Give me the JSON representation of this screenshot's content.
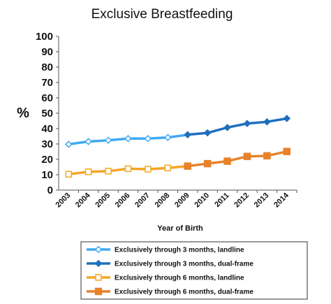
{
  "chart_data": {
    "type": "line",
    "title": "Exclusive Breastfeeding",
    "xlabel": "Year of Birth",
    "ylabel": "%",
    "ylim": [
      0,
      100
    ],
    "yticks": [
      "0",
      "10",
      "20",
      "30",
      "40",
      "50",
      "60",
      "70",
      "80",
      "90",
      "100"
    ],
    "x": [
      "2003",
      "2004",
      "2005",
      "2006",
      "2007",
      "2008",
      "2009",
      "2010",
      "2011",
      "2012",
      "2013",
      "2014"
    ],
    "grid": false,
    "legend_position": "bottom",
    "series": [
      {
        "name": "Exclusively through 3 months, landline",
        "color": "#3fa9f5",
        "marker": "open-diamond",
        "x": [
          "2003",
          "2004",
          "2005",
          "2006",
          "2007",
          "2008",
          "2009"
        ],
        "values": [
          29.8,
          31.6,
          32.4,
          33.5,
          33.5,
          34.2,
          36.0
        ]
      },
      {
        "name": "Exclusively through 3 months, dual-frame",
        "color": "#1f6fbf",
        "marker": "filled-diamond",
        "x": [
          "2009",
          "2010",
          "2011",
          "2012",
          "2013",
          "2014"
        ],
        "values": [
          36.0,
          37.2,
          40.7,
          43.3,
          44.4,
          46.6
        ]
      },
      {
        "name": "Exclusively through 6 months, landline",
        "color": "#f5a623",
        "marker": "open-square",
        "x": [
          "2003",
          "2004",
          "2005",
          "2006",
          "2007",
          "2008",
          "2009"
        ],
        "values": [
          10.3,
          11.9,
          12.3,
          13.9,
          13.6,
          14.4,
          15.6
        ]
      },
      {
        "name": "Exclusively through 6 months, dual-frame",
        "color": "#e8822a",
        "marker": "filled-square",
        "x": [
          "2009",
          "2010",
          "2011",
          "2012",
          "2013",
          "2014"
        ],
        "values": [
          15.6,
          17.2,
          18.8,
          21.9,
          22.3,
          25.1
        ]
      }
    ]
  }
}
